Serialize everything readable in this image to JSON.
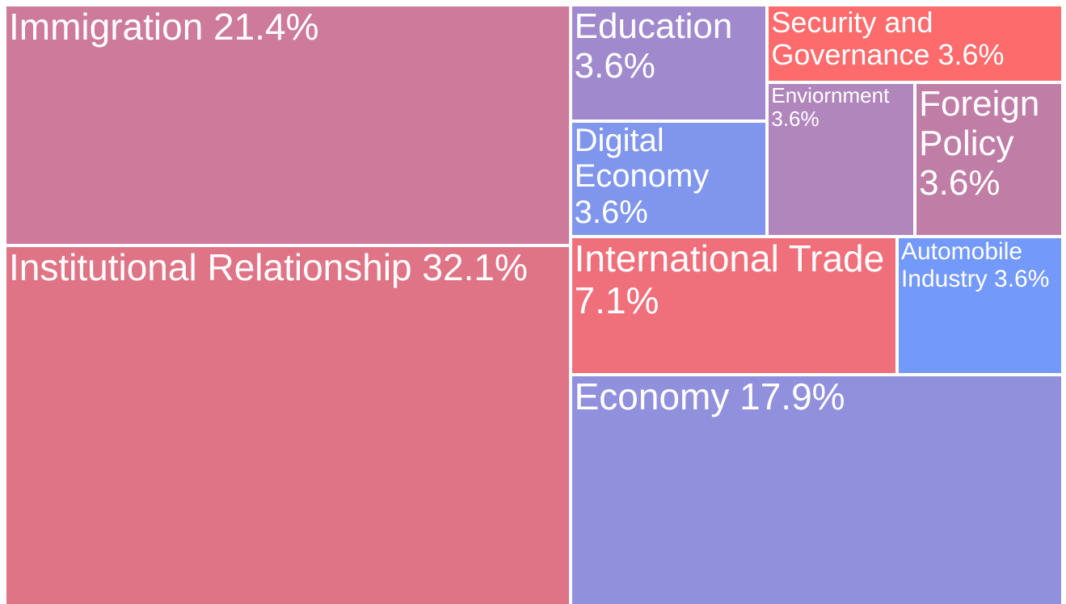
{
  "chart_data": {
    "type": "treemap",
    "categories": [
      "Institutional Relationship",
      "Immigration",
      "Economy",
      "International Trade",
      "Education",
      "Digital Economy",
      "Security and Governance",
      "Enviornment",
      "Foreign Policy",
      "Automobile Industry"
    ],
    "values": [
      32.1,
      21.4,
      17.9,
      7.1,
      3.6,
      3.6,
      3.6,
      3.6,
      3.6,
      3.6
    ],
    "value_labels": [
      "32.1%",
      "21.4%",
      "17.9%",
      "7.1%",
      "3.6%",
      "3.6%",
      "3.6%",
      "3.6%",
      "3.6%",
      "3.6%"
    ],
    "colors": [
      "#e07487",
      "#ce7a9b",
      "#9190dd",
      "#ef6f7b",
      "#a08acd",
      "#8096ec",
      "#fe6b6c",
      "#b186bd",
      "#c07ea7",
      "#7399fb"
    ]
  }
}
